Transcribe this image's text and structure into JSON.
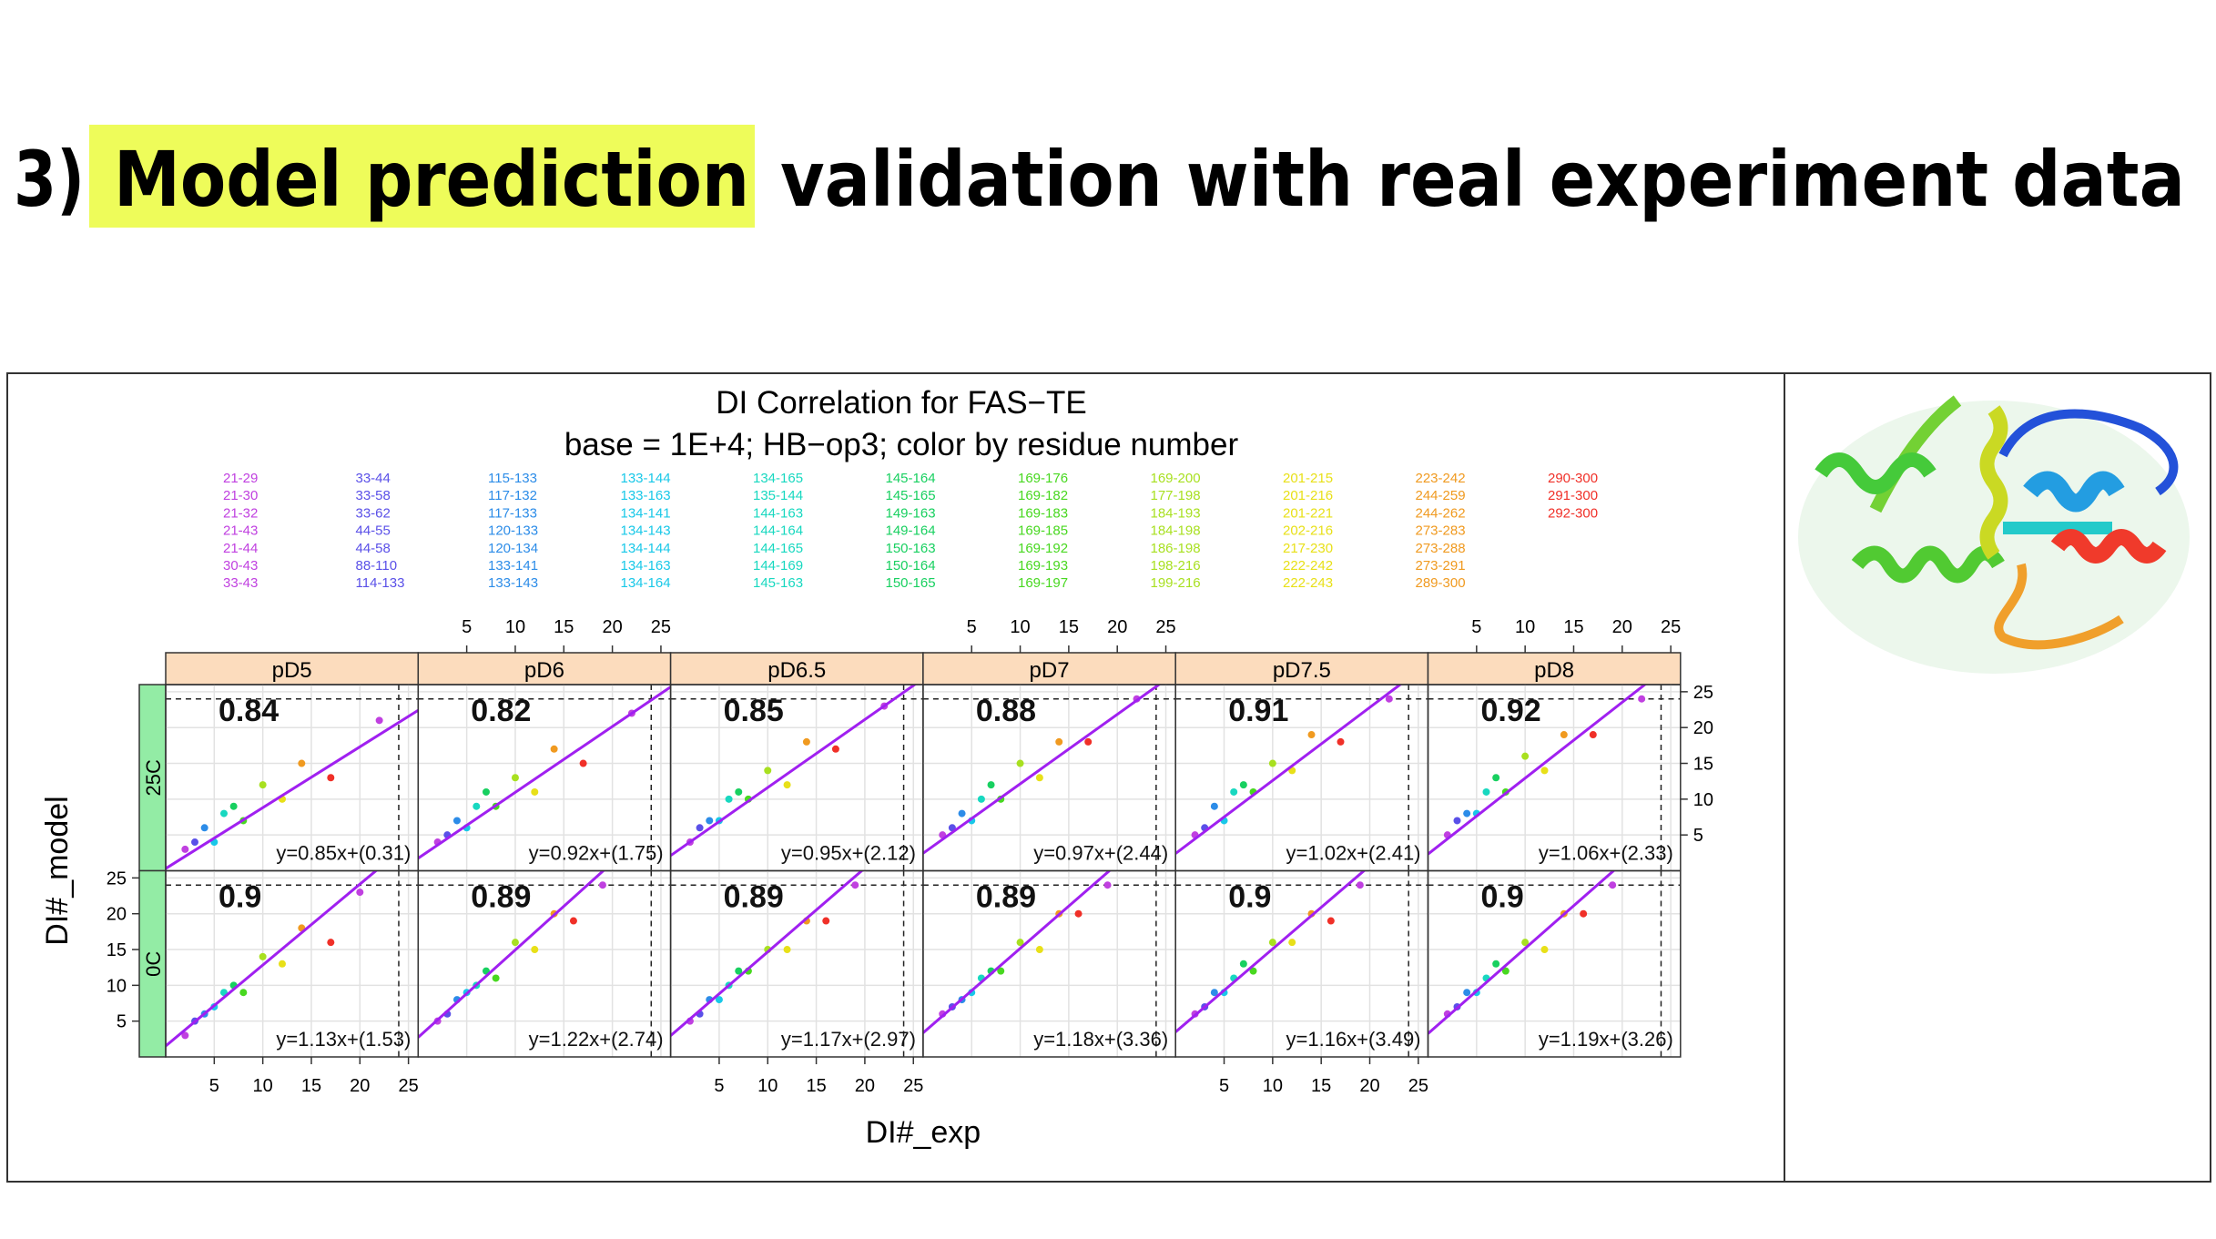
{
  "slide": {
    "title_parts": [
      "3)",
      "Model prediction",
      "validation with real experiment data"
    ]
  },
  "chart_data": {
    "type": "scatter-trellis",
    "title": "DI Correlation for FAS−TE",
    "subtitle": "base = 1E+4; HB−op3; color by residue number",
    "x_label": "DI#_exp",
    "y_label": "DI#_model",
    "legend": [
      {
        "color": "#c040e0",
        "items": [
          "21-29",
          "21-30",
          "21-32",
          "21-43",
          "21-44",
          "30-43",
          "33-43"
        ]
      },
      {
        "color": "#5a50e8",
        "items": [
          "33-44",
          "33-58",
          "33-62",
          "44-55",
          "44-58",
          "88-110",
          "114-133"
        ]
      },
      {
        "color": "#2c8ce8",
        "items": [
          "115-133",
          "117-132",
          "117-133",
          "120-133",
          "120-134",
          "133-141",
          "133-143"
        ]
      },
      {
        "color": "#18c8e8",
        "items": [
          "133-144",
          "133-163",
          "134-141",
          "134-143",
          "134-144",
          "134-163",
          "134-164"
        ]
      },
      {
        "color": "#18d8c0",
        "items": [
          "134-165",
          "135-144",
          "144-163",
          "144-164",
          "144-165",
          "144-169",
          "145-163"
        ]
      },
      {
        "color": "#18d060",
        "items": [
          "145-164",
          "145-165",
          "149-163",
          "149-164",
          "150-163",
          "150-164",
          "150-165"
        ]
      },
      {
        "color": "#48d820",
        "items": [
          "169-176",
          "169-182",
          "169-183",
          "169-185",
          "169-192",
          "169-193",
          "169-197"
        ]
      },
      {
        "color": "#a8e020",
        "items": [
          "169-200",
          "177-198",
          "184-193",
          "184-198",
          "186-198",
          "198-216",
          "199-216"
        ]
      },
      {
        "color": "#e8e018",
        "items": [
          "201-215",
          "201-216",
          "201-221",
          "202-216",
          "217-230",
          "222-242",
          "222-243"
        ]
      },
      {
        "color": "#f09a20",
        "items": [
          "223-242",
          "244-259",
          "244-262",
          "273-283",
          "273-288",
          "273-291",
          "289-300"
        ]
      },
      {
        "color": "#f03028",
        "items": [
          "290-300",
          "291-300",
          "292-300"
        ]
      }
    ],
    "columns": [
      "pD5",
      "pD6",
      "pD6.5",
      "pD7",
      "pD7.5",
      "pD8"
    ],
    "rows": [
      "25C",
      "0C"
    ],
    "xlim": [
      0,
      26
    ],
    "ylim": [
      0,
      26
    ],
    "xticks": [
      5,
      10,
      15,
      20,
      25
    ],
    "yticks": [
      5,
      10,
      15,
      20,
      25
    ],
    "dashed_limit": 24,
    "fit_color": "#a020f0",
    "grid": true,
    "panels": [
      [
        {
          "r": 0.84,
          "fit": {
            "slope": 0.85,
            "intercept": 0.31,
            "label": "y=0.85x+(0.31)"
          },
          "x": [
            2,
            3,
            4,
            5,
            6,
            7,
            8,
            10,
            12,
            14,
            17,
            22
          ],
          "y": [
            3,
            4,
            6,
            4,
            8,
            9,
            7,
            12,
            10,
            15,
            13,
            21
          ]
        },
        {
          "r": 0.82,
          "fit": {
            "slope": 0.92,
            "intercept": 1.75,
            "label": "y=0.92x+(1.75)"
          },
          "x": [
            2,
            3,
            4,
            5,
            6,
            7,
            8,
            10,
            12,
            14,
            17,
            22
          ],
          "y": [
            4,
            5,
            7,
            6,
            9,
            11,
            9,
            13,
            11,
            17,
            15,
            22
          ]
        },
        {
          "r": 0.85,
          "fit": {
            "slope": 0.95,
            "intercept": 2.12,
            "label": "y=0.95x+(2.12)"
          },
          "x": [
            2,
            3,
            4,
            5,
            6,
            7,
            8,
            10,
            12,
            14,
            17,
            22
          ],
          "y": [
            4,
            6,
            7,
            7,
            10,
            11,
            10,
            14,
            12,
            18,
            17,
            23
          ]
        },
        {
          "r": 0.88,
          "fit": {
            "slope": 0.97,
            "intercept": 2.44,
            "label": "y=0.97x+(2.44)"
          },
          "x": [
            2,
            3,
            4,
            5,
            6,
            7,
            8,
            10,
            12,
            14,
            17,
            22
          ],
          "y": [
            5,
            6,
            8,
            7,
            10,
            12,
            10,
            15,
            13,
            18,
            18,
            24
          ]
        },
        {
          "r": 0.91,
          "fit": {
            "slope": 1.02,
            "intercept": 2.41,
            "label": "y=1.02x+(2.41)"
          },
          "x": [
            2,
            3,
            4,
            5,
            6,
            7,
            8,
            10,
            12,
            14,
            17,
            22
          ],
          "y": [
            5,
            6,
            9,
            7,
            11,
            12,
            11,
            15,
            14,
            19,
            18,
            24
          ]
        },
        {
          "r": 0.92,
          "fit": {
            "slope": 1.06,
            "intercept": 2.33,
            "label": "y=1.06x+(2.33)"
          },
          "x": [
            2,
            3,
            4,
            5,
            6,
            7,
            8,
            10,
            12,
            14,
            17,
            22
          ],
          "y": [
            5,
            7,
            8,
            8,
            11,
            13,
            11,
            16,
            14,
            19,
            19,
            24
          ]
        }
      ],
      [
        {
          "r": 0.9,
          "fit": {
            "slope": 1.13,
            "intercept": 1.53,
            "label": "y=1.13x+(1.53)"
          },
          "x": [
            2,
            3,
            4,
            5,
            6,
            7,
            8,
            10,
            12,
            14,
            17,
            20
          ],
          "y": [
            3,
            5,
            6,
            7,
            9,
            10,
            9,
            14,
            13,
            18,
            16,
            23
          ]
        },
        {
          "r": 0.89,
          "fit": {
            "slope": 1.22,
            "intercept": 2.74,
            "label": "y=1.22x+(2.74)"
          },
          "x": [
            2,
            3,
            4,
            5,
            6,
            7,
            8,
            10,
            12,
            14,
            16,
            19
          ],
          "y": [
            5,
            6,
            8,
            9,
            10,
            12,
            11,
            16,
            15,
            20,
            19,
            24
          ]
        },
        {
          "r": 0.89,
          "fit": {
            "slope": 1.17,
            "intercept": 2.97,
            "label": "y=1.17x+(2.97)"
          },
          "x": [
            2,
            3,
            4,
            5,
            6,
            7,
            8,
            10,
            12,
            14,
            16,
            19
          ],
          "y": [
            5,
            6,
            8,
            8,
            10,
            12,
            12,
            15,
            15,
            19,
            19,
            24
          ]
        },
        {
          "r": 0.89,
          "fit": {
            "slope": 1.18,
            "intercept": 3.36,
            "label": "y=1.18x+(3.36)"
          },
          "x": [
            2,
            3,
            4,
            5,
            6,
            7,
            8,
            10,
            12,
            14,
            16,
            19
          ],
          "y": [
            6,
            7,
            8,
            9,
            11,
            12,
            12,
            16,
            15,
            20,
            20,
            24
          ]
        },
        {
          "r": 0.9,
          "fit": {
            "slope": 1.16,
            "intercept": 3.49,
            "label": "y=1.16x+(3.49)"
          },
          "x": [
            2,
            3,
            4,
            5,
            6,
            7,
            8,
            10,
            12,
            14,
            16,
            19
          ],
          "y": [
            6,
            7,
            9,
            9,
            11,
            13,
            12,
            16,
            16,
            20,
            19,
            24
          ]
        },
        {
          "r": 0.9,
          "fit": {
            "slope": 1.19,
            "intercept": 3.26,
            "label": "y=1.19x+(3.26)"
          },
          "x": [
            2,
            3,
            4,
            5,
            6,
            7,
            8,
            10,
            12,
            14,
            16,
            19
          ],
          "y": [
            6,
            7,
            9,
            9,
            11,
            13,
            12,
            16,
            15,
            20,
            20,
            24
          ]
        }
      ]
    ]
  }
}
